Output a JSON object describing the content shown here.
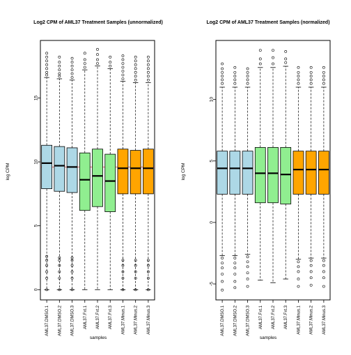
{
  "colors": {
    "DMSO": "#ADD8E6",
    "Fxt": "#90EE90",
    "Minus": "#FFA500",
    "hline": "#E06060"
  },
  "chart_data": [
    {
      "type": "boxplot",
      "title": "Log2 CPM of AML37 Treatment Samples (unnormalized)",
      "xlabel": "samples",
      "ylabel": "log CPM",
      "ylim": [
        -0.8,
        19.5
      ],
      "yticks": [
        "0",
        "5",
        "10",
        "15"
      ],
      "hline": 9.6,
      "grid": false,
      "categories": [
        "AML37.DMSO.1",
        "AML37.DMSO.2",
        "AML37.DMSO.3",
        "AML37.Fxt.1",
        "AML37.Fxt.2",
        "AML37.Fxt.3",
        "AML37.Minus.1",
        "AML37.Minus.2",
        "AML37.Minus.3"
      ],
      "groups": [
        "DMSO",
        "DMSO",
        "DMSO",
        "Fxt",
        "Fxt",
        "Fxt",
        "Minus",
        "Minus",
        "Minus"
      ],
      "boxes": [
        {
          "min": 0.0,
          "q1": 7.9,
          "median": 9.9,
          "q3": 11.3,
          "max": 16.6,
          "out_hi": [
            16.8,
            17.0,
            17.3,
            17.6,
            17.9,
            18.2,
            18.5
          ],
          "out_lo": [
            0.0,
            0.9,
            1.4,
            1.9,
            2.3,
            2.6
          ]
        },
        {
          "min": 0.0,
          "q1": 7.7,
          "median": 9.7,
          "q3": 11.2,
          "max": 16.5,
          "out_hi": [
            16.7,
            16.9,
            17.2,
            17.5,
            17.8,
            18.2
          ],
          "out_lo": [
            0.0,
            0.9,
            1.4,
            1.9,
            2.3,
            2.5
          ]
        },
        {
          "min": 0.0,
          "q1": 7.6,
          "median": 9.6,
          "q3": 11.1,
          "max": 16.4,
          "out_hi": [
            16.6,
            16.9,
            17.2,
            17.5,
            17.8,
            18.1
          ],
          "out_lo": [
            0.0,
            0.9,
            1.4,
            1.9,
            2.3,
            2.5
          ]
        },
        {
          "min": 0.0,
          "q1": 6.2,
          "median": 8.6,
          "q3": 10.7,
          "max": 17.2,
          "out_hi": [
            17.4,
            17.7,
            18.0,
            18.5
          ],
          "out_lo": []
        },
        {
          "min": 0.0,
          "q1": 6.5,
          "median": 8.9,
          "q3": 11.0,
          "max": 17.5,
          "out_hi": [
            17.7,
            18.0,
            18.4,
            18.8
          ],
          "out_lo": []
        },
        {
          "min": 0.0,
          "q1": 6.1,
          "median": 8.5,
          "q3": 10.6,
          "max": 17.3,
          "out_hi": [
            17.5,
            17.8,
            18.2
          ],
          "out_lo": []
        },
        {
          "min": 0.0,
          "q1": 7.5,
          "median": 9.5,
          "q3": 11.0,
          "max": 16.3,
          "out_hi": [
            16.5,
            16.8,
            17.1,
            17.4,
            17.7,
            18.0,
            18.3
          ],
          "out_lo": [
            0.0,
            0.9,
            1.4,
            1.9,
            2.3
          ]
        },
        {
          "min": 0.0,
          "q1": 7.5,
          "median": 9.5,
          "q3": 10.9,
          "max": 16.2,
          "out_hi": [
            16.4,
            16.7,
            17.0,
            17.3,
            17.6,
            17.9,
            18.2
          ],
          "out_lo": [
            0.0,
            0.9,
            1.4,
            1.9,
            2.3
          ]
        },
        {
          "min": 0.0,
          "q1": 7.5,
          "median": 9.5,
          "q3": 11.0,
          "max": 16.2,
          "out_hi": [
            16.4,
            16.7,
            17.0,
            17.3,
            17.6,
            17.9,
            18.2
          ],
          "out_lo": [
            0.0,
            0.9,
            1.4,
            1.9,
            2.3
          ]
        }
      ]
    },
    {
      "type": "boxplot",
      "title": "Log2 CPM of AML37 Treatment Samples (normalized)",
      "xlabel": "samples",
      "ylabel": "log CPM",
      "ylim": [
        -6.3,
        14.8
      ],
      "yticks": [
        "-5",
        "0",
        "5",
        "10"
      ],
      "hline": null,
      "grid": false,
      "categories": [
        "AML37.DMSO.1",
        "AML37.DMSO.2",
        "AML37.DMSO.3",
        "AML37.Fxt.1",
        "AML37.Fxt.2",
        "AML37.Fxt.3",
        "AML37.Minus.1",
        "AML37.Minus.2",
        "AML37.Minus.3"
      ],
      "groups": [
        "DMSO",
        "DMSO",
        "DMSO",
        "Fxt",
        "Fxt",
        "Fxt",
        "Minus",
        "Minus",
        "Minus"
      ],
      "boxes": [
        {
          "min": -2.7,
          "q1": 2.3,
          "median": 4.4,
          "q3": 5.8,
          "max": 11.0,
          "out_hi": [
            11.3,
            11.6,
            11.9,
            12.2,
            12.5,
            12.9
          ],
          "out_lo": [
            -2.9,
            -3.3,
            -3.7,
            -4.2,
            -4.8,
            -5.5
          ]
        },
        {
          "min": -2.7,
          "q1": 2.3,
          "median": 4.4,
          "q3": 5.8,
          "max": 11.0,
          "out_hi": [
            11.3,
            11.6,
            11.9,
            12.2,
            12.6
          ],
          "out_lo": [
            -2.9,
            -3.3,
            -3.7,
            -4.2,
            -4.8,
            -5.3
          ]
        },
        {
          "min": -2.6,
          "q1": 2.3,
          "median": 4.4,
          "q3": 5.8,
          "max": 11.0,
          "out_hi": [
            11.3,
            11.6,
            11.9,
            12.2,
            12.5
          ],
          "out_lo": [
            -2.8,
            -3.2,
            -3.6,
            -4.1,
            -4.6,
            -5.2
          ]
        },
        {
          "min": -4.7,
          "q1": 1.6,
          "median": 4.0,
          "q3": 6.1,
          "max": 12.6,
          "out_hi": [
            12.9,
            13.3,
            14.0
          ],
          "out_lo": []
        },
        {
          "min": -4.9,
          "q1": 1.6,
          "median": 4.0,
          "q3": 6.1,
          "max": 12.6,
          "out_hi": [
            12.9,
            13.4,
            14.0
          ],
          "out_lo": []
        },
        {
          "min": -4.6,
          "q1": 1.5,
          "median": 3.9,
          "q3": 6.1,
          "max": 12.7,
          "out_hi": [
            13.0,
            13.3,
            13.9
          ],
          "out_lo": []
        },
        {
          "min": -3.0,
          "q1": 2.3,
          "median": 4.3,
          "q3": 5.8,
          "max": 11.0,
          "out_hi": [
            11.3,
            11.6,
            11.9,
            12.2,
            12.6
          ],
          "out_lo": [
            -3.2,
            -3.6,
            -4.0,
            -4.6,
            -5.2
          ]
        },
        {
          "min": -2.9,
          "q1": 2.3,
          "median": 4.3,
          "q3": 5.8,
          "max": 11.0,
          "out_hi": [
            11.3,
            11.6,
            11.9,
            12.2,
            12.6
          ],
          "out_lo": [
            -3.1,
            -3.5,
            -4.0,
            -4.5,
            -5.1
          ]
        },
        {
          "min": -2.9,
          "q1": 2.3,
          "median": 4.3,
          "q3": 5.8,
          "max": 11.0,
          "out_hi": [
            11.3,
            11.6,
            11.9,
            12.2,
            12.6
          ],
          "out_lo": [
            -3.1,
            -3.5,
            -4.0,
            -4.5,
            -5.2
          ]
        }
      ]
    }
  ]
}
